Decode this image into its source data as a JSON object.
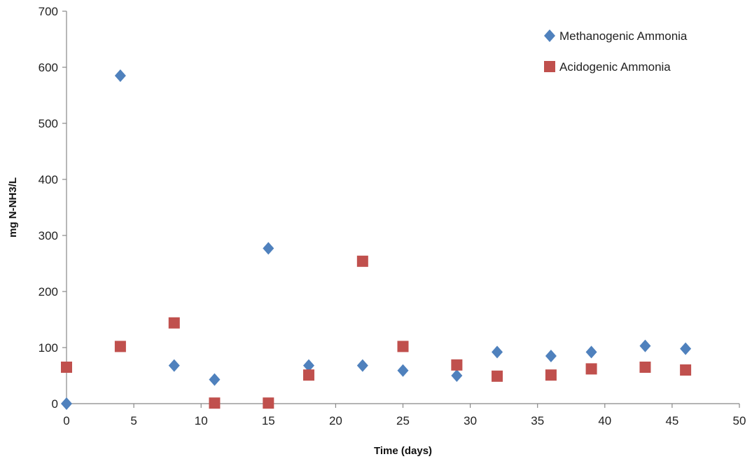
{
  "chart_data": {
    "type": "scatter",
    "title": "",
    "xlabel": "Time (days)",
    "ylabel": "mg N-NH3/L",
    "xlim": [
      0,
      50
    ],
    "ylim": [
      0,
      700
    ],
    "x_ticks": [
      0,
      5,
      10,
      15,
      20,
      25,
      30,
      35,
      40,
      45,
      50
    ],
    "y_ticks": [
      0,
      100,
      200,
      300,
      400,
      500,
      600,
      700
    ],
    "grid": false,
    "legend_position": "top-right",
    "series": [
      {
        "name": "Methanogenic Ammonia",
        "marker": "diamond",
        "color": "#4F81BD",
        "points": [
          {
            "x": 0,
            "y": 0
          },
          {
            "x": 4,
            "y": 585
          },
          {
            "x": 8,
            "y": 68
          },
          {
            "x": 11,
            "y": 43
          },
          {
            "x": 15,
            "y": 277
          },
          {
            "x": 18,
            "y": 68
          },
          {
            "x": 22,
            "y": 68
          },
          {
            "x": 25,
            "y": 59
          },
          {
            "x": 29,
            "y": 50
          },
          {
            "x": 32,
            "y": 92
          },
          {
            "x": 36,
            "y": 85
          },
          {
            "x": 39,
            "y": 92
          },
          {
            "x": 43,
            "y": 103
          },
          {
            "x": 46,
            "y": 98
          }
        ]
      },
      {
        "name": "Acidogenic Ammonia",
        "marker": "square",
        "color": "#C0504D",
        "points": [
          {
            "x": 0,
            "y": 65
          },
          {
            "x": 4,
            "y": 102
          },
          {
            "x": 8,
            "y": 144
          },
          {
            "x": 11,
            "y": 1
          },
          {
            "x": 15,
            "y": 1
          },
          {
            "x": 18,
            "y": 51
          },
          {
            "x": 22,
            "y": 254
          },
          {
            "x": 25,
            "y": 102
          },
          {
            "x": 29,
            "y": 69
          },
          {
            "x": 32,
            "y": 49
          },
          {
            "x": 36,
            "y": 51
          },
          {
            "x": 39,
            "y": 62
          },
          {
            "x": 43,
            "y": 65
          },
          {
            "x": 46,
            "y": 60
          }
        ]
      }
    ]
  }
}
